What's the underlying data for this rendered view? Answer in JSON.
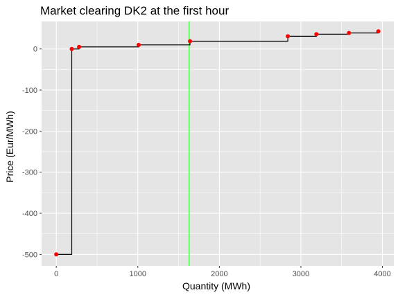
{
  "chart_data": {
    "type": "step",
    "title": "Market clearing DK2 at the first hour",
    "xlabel": "Quantity (MWh)",
    "ylabel": "Price (Eur/MWh)",
    "xlim": [
      -180,
      4140
    ],
    "ylim": [
      -528,
      67
    ],
    "x_ticks": [
      0,
      1000,
      2000,
      3000,
      4000
    ],
    "y_ticks": [
      0,
      -100,
      -200,
      -300,
      -400,
      -500
    ],
    "x_tick_labels": [
      "0",
      "1000",
      "2000",
      "3000",
      "4000"
    ],
    "y_tick_labels": [
      "0",
      "-100",
      "-200",
      "-300",
      "-400",
      "-500"
    ],
    "grid": true,
    "background": "#e5e5e5",
    "grid_color": "#ffffff",
    "step_line_color": "#000000",
    "point_color": "#ff0000",
    "vline_color": "#00ff00",
    "clearing_quantity": 1630,
    "points": [
      {
        "x": 0,
        "y": -500
      },
      {
        "x": 190,
        "y": 0
      },
      {
        "x": 280,
        "y": 5
      },
      {
        "x": 1010,
        "y": 10
      },
      {
        "x": 1640,
        "y": 19
      },
      {
        "x": 2840,
        "y": 31
      },
      {
        "x": 3190,
        "y": 36
      },
      {
        "x": 3590,
        "y": 39
      },
      {
        "x": 3950,
        "y": 43
      }
    ],
    "step_path": [
      [
        0,
        -500
      ],
      [
        190,
        -500
      ],
      [
        190,
        0
      ],
      [
        280,
        0
      ],
      [
        280,
        5
      ],
      [
        1010,
        5
      ],
      [
        1010,
        10
      ],
      [
        1640,
        10
      ],
      [
        1640,
        19
      ],
      [
        2840,
        19
      ],
      [
        2840,
        31
      ],
      [
        3190,
        31
      ],
      [
        3190,
        36
      ],
      [
        3590,
        36
      ],
      [
        3590,
        39
      ],
      [
        3950,
        39
      ],
      [
        3950,
        43
      ]
    ]
  }
}
